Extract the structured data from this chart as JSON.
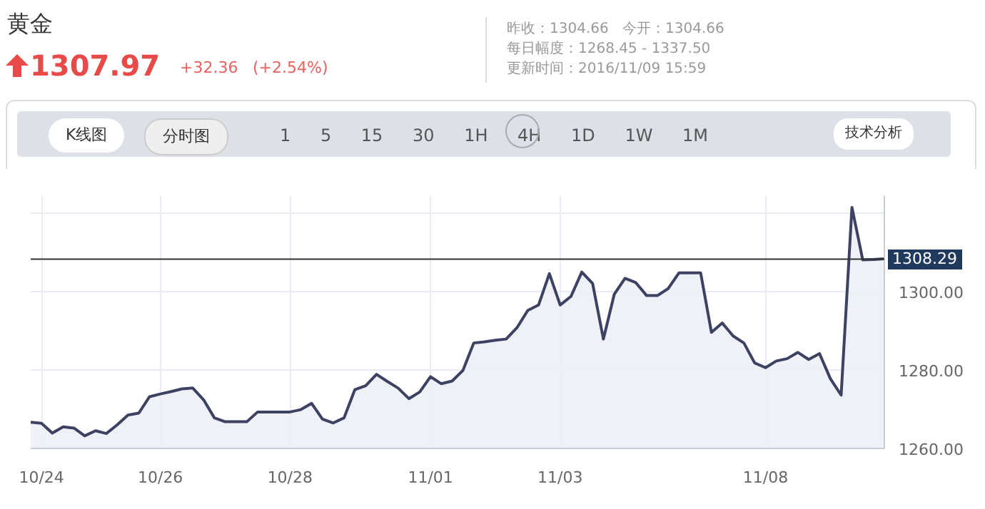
{
  "chart_data": {
    "type": "area",
    "title": "黄金",
    "subtitle": "1307.97",
    "annotations": [
      "+32.36",
      "(+2.54%)",
      "昨收：1304.66",
      "今开：1304.66",
      "每日幅度：1268.45 - 1337.50",
      "更新时间：2016/11/09 15:59",
      "K线图",
      "分时图",
      "1 5 15 30 1H 4H 1D 1W 1M",
      "技术分析"
    ],
    "categories": [
      null,
      "10/24",
      null,
      null,
      null,
      null,
      null,
      null,
      null,
      null,
      null,
      null,
      "10/26",
      null,
      null,
      null,
      null,
      null,
      null,
      null,
      null,
      null,
      null,
      null,
      "10/28",
      null,
      null,
      null,
      null,
      null,
      null,
      null,
      null,
      null,
      null,
      null,
      null,
      "11/01",
      null,
      null,
      null,
      null,
      null,
      null,
      null,
      null,
      null,
      null,
      null,
      "11/03",
      null,
      null,
      null,
      null,
      null,
      null,
      null,
      null,
      null,
      null,
      null,
      null,
      null,
      null,
      null,
      null,
      null,
      null,
      "11/08",
      null,
      null,
      null,
      null,
      null,
      null,
      null,
      null,
      null,
      null,
      null
    ],
    "ylim": [
      1260,
      1324.4
    ],
    "yticks": [
      {
        "value": 1260,
        "label": "1260.00"
      },
      {
        "value": 1280,
        "label": "1280.00"
      },
      {
        "value": 1300,
        "label": "1300.00"
      },
      {
        "value": 1320,
        "label": null
      }
    ],
    "grid": true,
    "ref_lines": [
      {
        "axis": "y",
        "value": 1308.29,
        "label": "1308.29",
        "color": "#333333"
      }
    ],
    "series": [
      {
        "color": "#3d4263",
        "values": [
          1266.7,
          1266.4,
          1263.9,
          1265.5,
          1265.2,
          1263.2,
          1264.5,
          1263.8,
          1266.0,
          1268.5,
          1269.0,
          1273.2,
          1273.9,
          1274.5,
          1275.2,
          1275.4,
          1272.4,
          1267.8,
          1266.8,
          1266.8,
          1266.8,
          1269.3,
          1269.3,
          1269.3,
          1269.3,
          1269.9,
          1271.5,
          1267.5,
          1266.5,
          1267.8,
          1275.0,
          1276.0,
          1278.9,
          1277.1,
          1275.4,
          1272.7,
          1274.4,
          1278.3,
          1276.5,
          1277.2,
          1279.9,
          1286.9,
          1287.2,
          1287.6,
          1287.9,
          1290.8,
          1295.2,
          1296.6,
          1304.6,
          1296.6,
          1298.8,
          1305.0,
          1302.1,
          1287.9,
          1299.3,
          1303.4,
          1302.3,
          1299.0,
          1299.0,
          1300.8,
          1304.8,
          1304.8,
          1304.8,
          1289.6,
          1292.0,
          1288.7,
          1286.9,
          1281.8,
          1280.6,
          1282.3,
          1282.9,
          1284.5,
          1282.7,
          1284.2,
          1277.8,
          1273.6,
          1321.5,
          1308.1,
          1308.2,
          1308.4
        ]
      }
    ]
  }
}
